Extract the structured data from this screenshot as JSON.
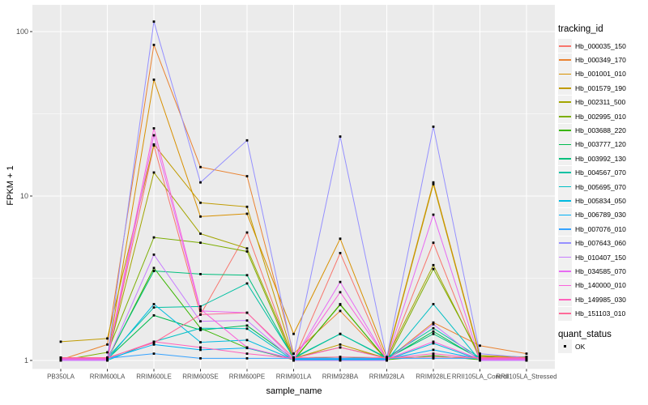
{
  "legend": {
    "tracking_title": "tracking_id",
    "quant_title": "quant_status",
    "ok_label": "OK"
  },
  "chart_data": {
    "type": "line",
    "title": "",
    "xlabel": "sample_name",
    "ylabel": "FPKM + 1",
    "y_scale": "log10",
    "y_range": [
      1,
      130
    ],
    "y_ticks": [
      1,
      10,
      100
    ],
    "y_minor_ticks": [
      3.1623,
      31.623
    ],
    "grid": true,
    "legend_position": "right",
    "panel_bg": "#EBEBEB",
    "grid_color": "#FFFFFF",
    "tick_color": "#333333",
    "tick_label_color": "#4D4D4D",
    "point_color": "#000000",
    "quant_status_value": "OK",
    "categories": [
      "PB350LA",
      "RRIM600LA",
      "RRIM600LE",
      "RRIM600SE",
      "RRIM600PE",
      "RRIM901LA",
      "RRIM928BA",
      "RRIM928LA",
      "RRIM928LE",
      "RRII105LA_Control",
      "RRII105LA_Stressed"
    ],
    "series": [
      {
        "name": "Hb_000035_150",
        "color": "#F8766D",
        "values": [
          1.0,
          1.0,
          20.3,
          1.9,
          6.0,
          1.0,
          4.5,
          1.0,
          5.2,
          1.0,
          1.0
        ]
      },
      {
        "name": "Hb_000349_170",
        "color": "#EA8331",
        "values": [
          1.01,
          1.25,
          83,
          15,
          13.2,
          1.1,
          2.0,
          1.01,
          1.7,
          1.23,
          1.1
        ]
      },
      {
        "name": "Hb_001001_010",
        "color": "#D89000",
        "values": [
          1.02,
          1.02,
          51,
          7.5,
          7.8,
          1.45,
          5.5,
          1.05,
          12.1,
          1.07,
          1.05
        ]
      },
      {
        "name": "Hb_001579_190",
        "color": "#C09B00",
        "values": [
          1.3,
          1.36,
          20.6,
          9.1,
          8.6,
          1.03,
          1.25,
          1.03,
          11.8,
          1.05,
          1.05
        ]
      },
      {
        "name": "Hb_002311_500",
        "color": "#A3A500",
        "values": [
          1.04,
          1.04,
          13.9,
          5.9,
          4.8,
          1.04,
          1.2,
          1.04,
          3.8,
          1.04,
          1.04
        ]
      },
      {
        "name": "Hb_002995_010",
        "color": "#7CAE00",
        "values": [
          1.0,
          1.12,
          5.6,
          5.2,
          4.6,
          1.0,
          2.2,
          1.0,
          3.6,
          1.07,
          1.0
        ]
      },
      {
        "name": "Hb_003688_220",
        "color": "#39B600",
        "values": [
          1.01,
          1.01,
          3.65,
          1.57,
          1.19,
          1.01,
          2.18,
          1.01,
          1.07,
          1.01,
          1.01
        ]
      },
      {
        "name": "Hb_003777_120",
        "color": "#00BB4E",
        "values": [
          1.02,
          1.02,
          1.88,
          1.53,
          1.63,
          1.02,
          1.05,
          1.02,
          1.5,
          1.02,
          1.05
        ]
      },
      {
        "name": "Hb_003992_130",
        "color": "#00BF7D",
        "values": [
          1.03,
          1.03,
          3.5,
          3.35,
          3.3,
          1.03,
          1.45,
          1.03,
          1.45,
          1.03,
          1.03
        ]
      },
      {
        "name": "Hb_004567_070",
        "color": "#00C1A3",
        "values": [
          1.04,
          1.04,
          2.1,
          2.13,
          2.94,
          1.04,
          1.45,
          1.04,
          1.57,
          1.04,
          1.04
        ]
      },
      {
        "name": "Hb_005695_070",
        "color": "#00BFC4",
        "values": [
          1.0,
          1.0,
          1.3,
          1.57,
          1.56,
          1.0,
          1.0,
          1.0,
          2.2,
          1.0,
          1.0
        ]
      },
      {
        "name": "Hb_005834_050",
        "color": "#00BAE0",
        "values": [
          1.01,
          1.01,
          2.2,
          1.29,
          1.33,
          1.01,
          1.01,
          1.01,
          1.27,
          1.01,
          1.01
        ]
      },
      {
        "name": "Hb_006789_030",
        "color": "#00B0F6",
        "values": [
          1.02,
          1.02,
          1.25,
          1.16,
          1.19,
          1.02,
          1.02,
          1.02,
          1.16,
          1.02,
          1.02
        ]
      },
      {
        "name": "Hb_007076_010",
        "color": "#35A2FF",
        "values": [
          1.03,
          1.03,
          1.1,
          1.03,
          1.03,
          1.03,
          1.03,
          1.03,
          1.03,
          1.03,
          1.03
        ]
      },
      {
        "name": "Hb_007643_060",
        "color": "#9590FF",
        "values": [
          1.04,
          1.04,
          115,
          12.1,
          21.8,
          1.04,
          23,
          1.04,
          26.4,
          1.1,
          1.04
        ]
      },
      {
        "name": "Hb_010407_150",
        "color": "#C77CFF",
        "values": [
          1.0,
          1.0,
          4.4,
          1.73,
          1.75,
          1.0,
          1.0,
          1.0,
          1.66,
          1.0,
          1.0
        ]
      },
      {
        "name": "Hb_034585_070",
        "color": "#E76BF3",
        "values": [
          1.01,
          1.01,
          23.4,
          2.0,
          1.95,
          1.01,
          3.0,
          1.01,
          7.7,
          1.01,
          1.01
        ]
      },
      {
        "name": "Hb_140000_010",
        "color": "#FA62DB",
        "values": [
          1.02,
          1.02,
          25.8,
          2.05,
          1.2,
          1.02,
          2.6,
          1.02,
          1.3,
          1.02,
          1.02
        ]
      },
      {
        "name": "Hb_149985_030",
        "color": "#FF62BC",
        "values": [
          1.03,
          1.03,
          1.3,
          1.2,
          1.1,
          1.03,
          1.2,
          1.03,
          1.1,
          1.03,
          1.03
        ]
      },
      {
        "name": "Hb_151103_010",
        "color": "#FF6A98",
        "values": [
          1.04,
          1.04,
          1.28,
          1.9,
          1.95,
          1.04,
          1.05,
          1.04,
          1.05,
          1.04,
          1.04
        ]
      }
    ]
  }
}
